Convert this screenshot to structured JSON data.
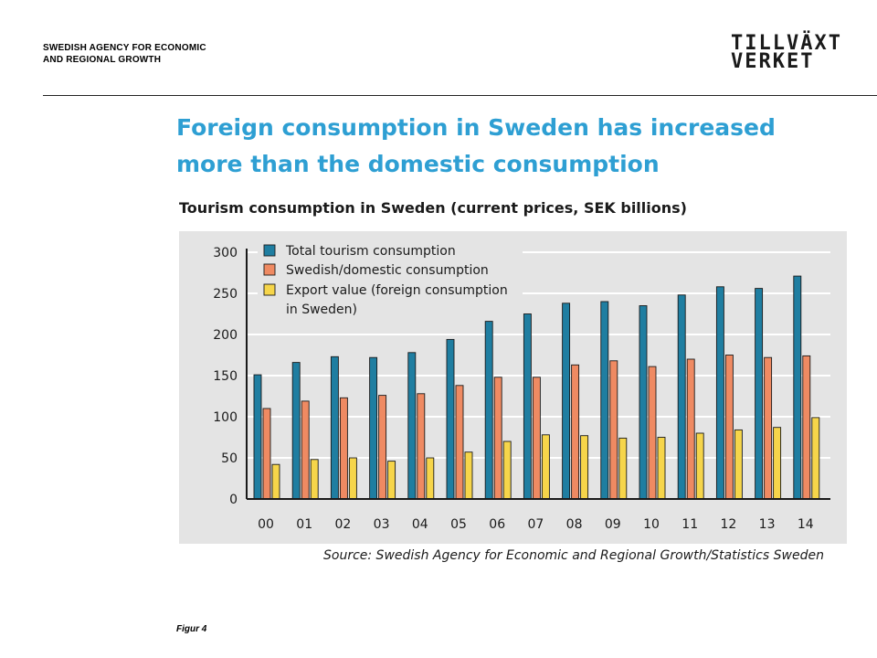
{
  "header": {
    "agency_line1": "SWEDISH AGENCY FOR ECONOMIC",
    "agency_line2": "AND REGIONAL GROWTH",
    "logo_line1": "TILLVÄXT",
    "logo_line2": "VERKET"
  },
  "slide": {
    "title_line1": "Foreign consumption in Sweden has increased",
    "title_line2": "more than the domestic consumption",
    "figure_label": "Figur 4"
  },
  "colors": {
    "title": "#2e9fd3",
    "total": "#1f7ea1",
    "domestic": "#ef8a62",
    "export": "#f6d54a"
  },
  "chart_data": {
    "type": "bar",
    "title": "Tourism consumption in Sweden (current prices, SEK billions)",
    "source": "Source: Swedish Agency for Economic and Regional Growth/Statistics Sweden",
    "categories": [
      "00",
      "01",
      "02",
      "03",
      "04",
      "05",
      "06",
      "07",
      "08",
      "09",
      "10",
      "11",
      "12",
      "13",
      "14"
    ],
    "series": [
      {
        "name": "Total tourism consumption",
        "values": [
          151,
          166,
          173,
          172,
          178,
          194,
          216,
          225,
          238,
          240,
          235,
          248,
          258,
          256,
          271
        ]
      },
      {
        "name": "Swedish/domestic consumption",
        "values": [
          110,
          119,
          123,
          126,
          128,
          138,
          148,
          148,
          163,
          168,
          161,
          170,
          175,
          172,
          174
        ]
      },
      {
        "name": "Export value (foreign consumption in Sweden)",
        "values": [
          42,
          48,
          50,
          46,
          50,
          57,
          70,
          78,
          77,
          74,
          75,
          80,
          84,
          87,
          99
        ]
      }
    ],
    "legend_lines": [
      [
        "Total tourism consumption"
      ],
      [
        "Swedish/domestic consumption"
      ],
      [
        "Export value (foreign consumption",
        "in Sweden)"
      ]
    ],
    "yticks": [
      0,
      50,
      100,
      150,
      200,
      250,
      300
    ],
    "ylim": [
      0,
      300
    ],
    "grid": true,
    "legend_position": "top-left"
  }
}
